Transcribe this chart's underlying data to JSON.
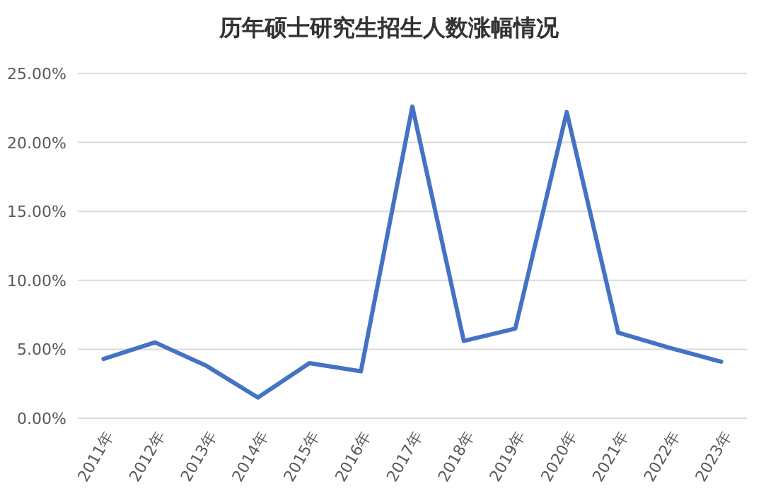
{
  "chart_data": {
    "type": "line",
    "title": "历年硕士研究生招生人数涨幅情况",
    "categories": [
      "2011年",
      "2012年",
      "2013年",
      "2014年",
      "2015年",
      "2016年",
      "2017年",
      "2018年",
      "2019年",
      "2020年",
      "2021年",
      "2022年",
      "2023年"
    ],
    "series": [
      {
        "color": "#4472c4",
        "values": [
          4.3,
          5.5,
          3.8,
          1.5,
          4.0,
          3.4,
          22.6,
          5.6,
          6.5,
          22.2,
          6.2,
          5.1,
          4.1
        ]
      }
    ],
    "ylim": [
      0,
      25
    ],
    "yticks": [
      {
        "value": 0,
        "label": "0.00%"
      },
      {
        "value": 5,
        "label": "5.00%"
      },
      {
        "value": 10,
        "label": "10.00%"
      },
      {
        "value": 15,
        "label": "15.00%"
      },
      {
        "value": 20,
        "label": "20.00%"
      },
      {
        "value": 25,
        "label": "25.00%"
      }
    ],
    "grid": "y",
    "marker": "none",
    "line_style": "solid"
  }
}
